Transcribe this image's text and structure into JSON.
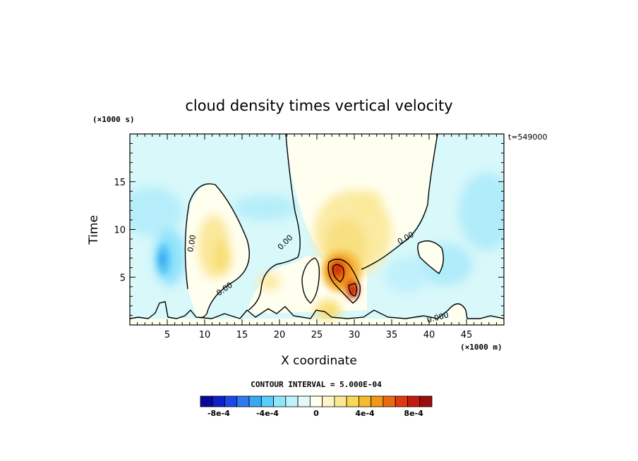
{
  "chart_data": {
    "type": "heatmap",
    "title": "cloud density times vertical velocity",
    "xlabel": "X coordinate",
    "ylabel": "Time",
    "x_unit": "(×1000 m)",
    "y_unit": "(×1000 s)",
    "time_label": "t=549000",
    "xlim": [
      0,
      50
    ],
    "ylim": [
      0,
      20
    ],
    "x_ticks": [
      5,
      10,
      15,
      20,
      25,
      30,
      35,
      40,
      45
    ],
    "y_ticks": [
      5,
      10,
      15
    ],
    "contour_note": "CONTOUR INTERVAL = 5.000E-04",
    "contour_labels": [
      "0.00",
      "0.00",
      "0.00",
      "0.00",
      "0.000"
    ],
    "colorbar": {
      "colors": [
        "#0a0a96",
        "#1020c8",
        "#1b49e6",
        "#2f7af0",
        "#38a8f5",
        "#58ccfa",
        "#8fe6fc",
        "#bff3fc",
        "#e2fafa",
        "#fffff0",
        "#fdf5c4",
        "#fbe98f",
        "#f8d955",
        "#f5bd2c",
        "#f19716",
        "#ea6a10",
        "#dd3a10",
        "#c41a10",
        "#9d0c0c"
      ],
      "tick_labels": [
        "-8e-4",
        "-4e-4",
        "0",
        "4e-4",
        "8e-4"
      ],
      "tick_values": [
        -0.0008,
        -0.0004,
        0,
        0.0004,
        0.0008
      ]
    }
  }
}
